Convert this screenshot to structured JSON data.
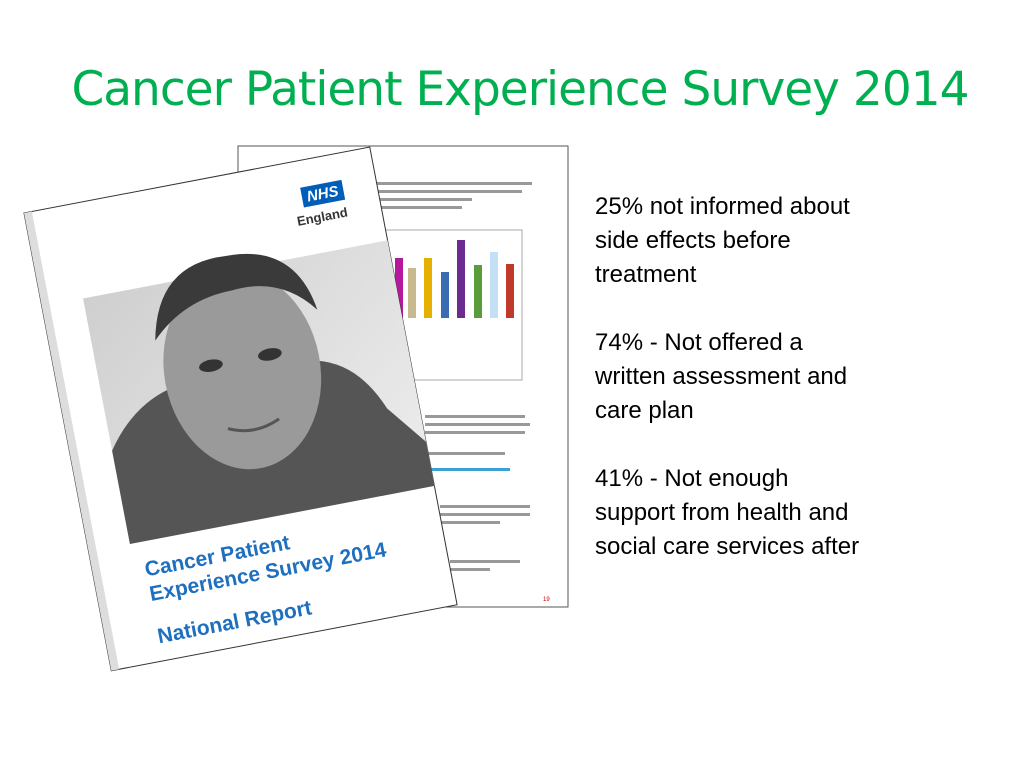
{
  "title": "Cancer Patient Experience Survey 2014",
  "report": {
    "cover": {
      "logo": "NHS",
      "org": "England",
      "title_lines": [
        "Cancer Patient",
        "Experience Survey 2014"
      ],
      "subtitle": "National Report"
    },
    "page_number": "19"
  },
  "points": [
    [
      "25% not informed about",
      "side effects before",
      "treatment"
    ],
    [
      "74% - Not offered a",
      "written assessment and",
      "care plan"
    ],
    [
      "41% - Not enough",
      "support from health and",
      "social care services after"
    ]
  ]
}
